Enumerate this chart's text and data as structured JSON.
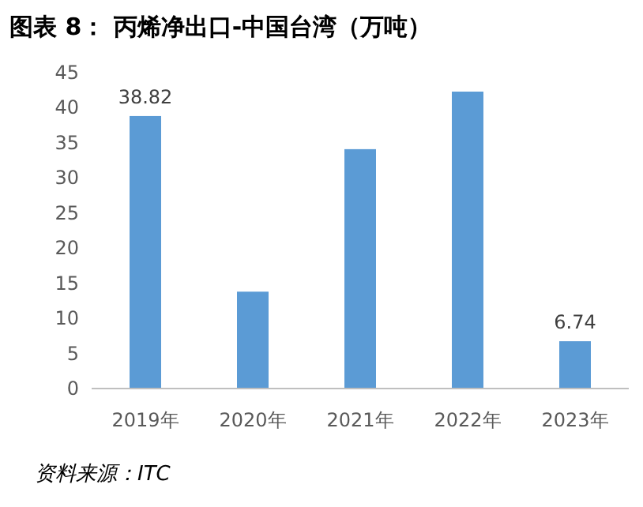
{
  "chart_data": {
    "type": "bar",
    "title": "图表 8：  丙烯净出口-中国台湾（万吨）",
    "categories": [
      "2019年",
      "2020年",
      "2021年",
      "2022年",
      "2023年"
    ],
    "values": [
      38.82,
      13.8,
      34.1,
      42.3,
      6.74
    ],
    "value_labels": [
      "38.82",
      null,
      null,
      null,
      "6.74"
    ],
    "color": "#5b9bd5",
    "ylim": [
      0,
      45
    ],
    "yticks": [
      0,
      5,
      10,
      15,
      20,
      25,
      30,
      35,
      40,
      45
    ],
    "grid": false,
    "annotations": [
      "资料来源：ITC"
    ]
  }
}
